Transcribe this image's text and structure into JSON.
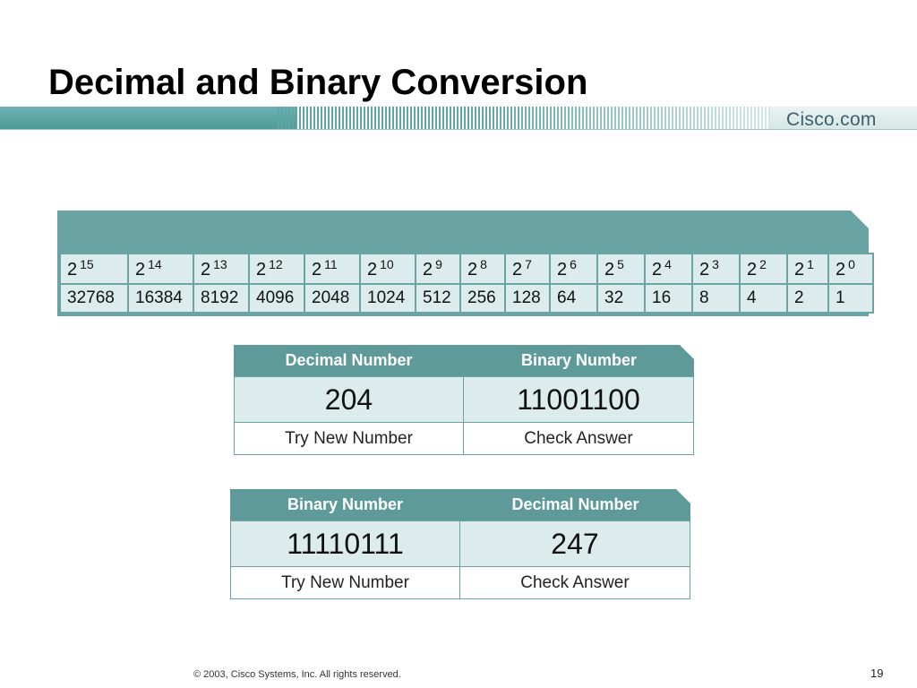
{
  "slide": {
    "title": "Decimal and Binary Conversion",
    "brand_link": "Cisco.com"
  },
  "powers_table": {
    "columns": [
      {
        "base": "2",
        "exponent": "15",
        "value": "32768"
      },
      {
        "base": "2",
        "exponent": "14",
        "value": "16384"
      },
      {
        "base": "2",
        "exponent": "13",
        "value": "8192"
      },
      {
        "base": "2",
        "exponent": "12",
        "value": "4096"
      },
      {
        "base": "2",
        "exponent": "11",
        "value": "2048"
      },
      {
        "base": "2",
        "exponent": "10",
        "value": "1024"
      },
      {
        "base": "2",
        "exponent": "9",
        "value": "512"
      },
      {
        "base": "2",
        "exponent": "8",
        "value": "256"
      },
      {
        "base": "2",
        "exponent": "7",
        "value": "128"
      },
      {
        "base": "2",
        "exponent": "6",
        "value": "64"
      },
      {
        "base": "2",
        "exponent": "5",
        "value": "32"
      },
      {
        "base": "2",
        "exponent": "4",
        "value": "16"
      },
      {
        "base": "2",
        "exponent": "3",
        "value": "8"
      },
      {
        "base": "2",
        "exponent": "2",
        "value": "4"
      },
      {
        "base": "2",
        "exponent": "1",
        "value": "2"
      },
      {
        "base": "2",
        "exponent": "0",
        "value": "1"
      }
    ]
  },
  "decimal_to_binary": {
    "header_left": "Decimal Number",
    "header_right": "Binary Number",
    "value_left": "204",
    "value_right": "11001100",
    "try_new_label": "Try New Number",
    "check_answer_label": "Check Answer"
  },
  "binary_to_decimal": {
    "header_left": "Binary Number",
    "header_right": "Decimal Number",
    "value_left": "11110111",
    "value_right": "247",
    "try_new_label": "Try New Number",
    "check_answer_label": "Check Answer"
  },
  "footer": {
    "copyright": "© 2003, Cisco Systems, Inc. All rights reserved.",
    "page_number": "19"
  },
  "colors": {
    "accent_teal": "#5e9a9a",
    "cell_light": "#dcebec"
  }
}
